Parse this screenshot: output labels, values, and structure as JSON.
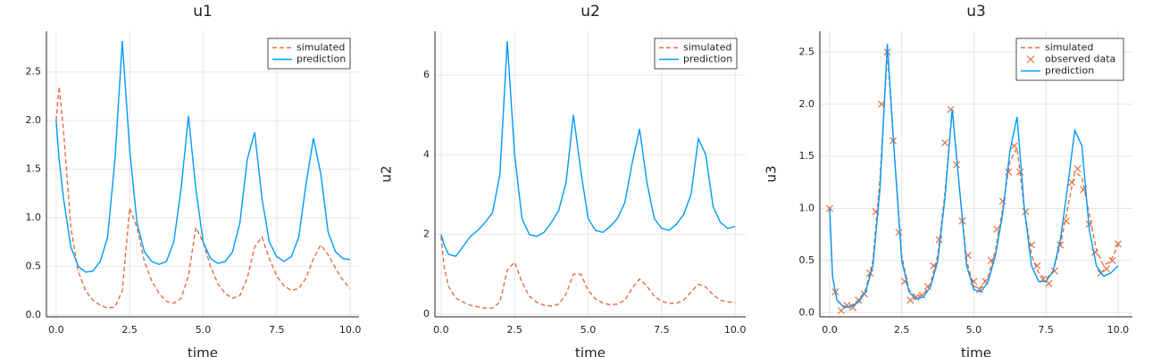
{
  "chart_data": [
    {
      "type": "line",
      "title": "u1",
      "xlabel": "time",
      "x": [
        0,
        0.1,
        0.25,
        0.5,
        0.75,
        1,
        1.25,
        1.5,
        1.75,
        2,
        2.25,
        2.5,
        2.75,
        3,
        3.25,
        3.5,
        3.75,
        4,
        4.25,
        4.5,
        4.75,
        5,
        5.25,
        5.5,
        5.75,
        6,
        6.25,
        6.5,
        6.75,
        7,
        7.25,
        7.5,
        7.75,
        8,
        8.25,
        8.5,
        8.75,
        9,
        9.25,
        9.5,
        9.75,
        10
      ],
      "series": [
        {
          "name": "simulated",
          "color": "#e26f46",
          "style": "dashed",
          "values": [
            2.0,
            2.35,
            1.9,
            0.9,
            0.45,
            0.25,
            0.15,
            0.1,
            0.07,
            0.08,
            0.25,
            1.1,
            0.9,
            0.55,
            0.35,
            0.22,
            0.14,
            0.12,
            0.17,
            0.4,
            0.9,
            0.75,
            0.5,
            0.32,
            0.22,
            0.17,
            0.2,
            0.38,
            0.7,
            0.8,
            0.58,
            0.4,
            0.3,
            0.25,
            0.27,
            0.38,
            0.58,
            0.72,
            0.62,
            0.48,
            0.36,
            0.27
          ]
        },
        {
          "name": "prediction",
          "color": "#009afa",
          "style": "solid",
          "values": [
            2.0,
            1.6,
            1.2,
            0.7,
            0.5,
            0.44,
            0.45,
            0.55,
            0.8,
            1.6,
            2.82,
            1.7,
            0.95,
            0.65,
            0.55,
            0.52,
            0.55,
            0.75,
            1.3,
            2.05,
            1.3,
            0.75,
            0.58,
            0.53,
            0.55,
            0.65,
            0.95,
            1.6,
            1.88,
            1.2,
            0.75,
            0.6,
            0.55,
            0.6,
            0.8,
            1.35,
            1.82,
            1.45,
            0.85,
            0.65,
            0.58,
            0.57
          ]
        }
      ],
      "xlim": [
        -0.33,
        10.3
      ],
      "ylim": [
        -0.02,
        2.92
      ],
      "xticks": [
        {
          "value": 0,
          "label": "0.0"
        },
        {
          "value": 2.5,
          "label": "2.5"
        },
        {
          "value": 5,
          "label": "5.0"
        },
        {
          "value": 7.5,
          "label": "7.5"
        },
        {
          "value": 10,
          "label": "10.0"
        }
      ],
      "yticks": [
        {
          "value": 0,
          "label": "0.0"
        },
        {
          "value": 0.5,
          "label": "0.5"
        },
        {
          "value": 1,
          "label": "1.0"
        },
        {
          "value": 1.5,
          "label": "1.5"
        },
        {
          "value": 2,
          "label": "2.0"
        },
        {
          "value": 2.5,
          "label": "2.5"
        }
      ],
      "grid": true,
      "legend": "top-right"
    },
    {
      "type": "line",
      "title": "u2",
      "xlabel": "time",
      "ylabel": "u2",
      "x": [
        0,
        0.1,
        0.25,
        0.5,
        0.75,
        1,
        1.25,
        1.5,
        1.75,
        2,
        2.25,
        2.5,
        2.75,
        3,
        3.25,
        3.5,
        3.75,
        4,
        4.25,
        4.5,
        4.75,
        5,
        5.25,
        5.5,
        5.75,
        6,
        6.25,
        6.5,
        6.75,
        7,
        7.25,
        7.5,
        7.75,
        8,
        8.25,
        8.5,
        8.75,
        9,
        9.25,
        9.5,
        9.75,
        10
      ],
      "series": [
        {
          "name": "simulated",
          "color": "#e26f46",
          "style": "dashed",
          "values": [
            1.95,
            1.2,
            0.7,
            0.4,
            0.3,
            0.22,
            0.18,
            0.15,
            0.15,
            0.3,
            1.1,
            1.3,
            0.8,
            0.45,
            0.3,
            0.22,
            0.2,
            0.25,
            0.5,
            1.0,
            1.0,
            0.6,
            0.38,
            0.28,
            0.23,
            0.25,
            0.35,
            0.65,
            0.88,
            0.7,
            0.45,
            0.32,
            0.27,
            0.27,
            0.35,
            0.55,
            0.75,
            0.68,
            0.48,
            0.35,
            0.3,
            0.3
          ]
        },
        {
          "name": "prediction",
          "color": "#009afa",
          "style": "solid",
          "values": [
            2.0,
            1.75,
            1.5,
            1.45,
            1.7,
            1.95,
            2.1,
            2.3,
            2.55,
            3.5,
            6.85,
            4.0,
            2.4,
            2.0,
            1.95,
            2.05,
            2.3,
            2.6,
            3.3,
            5.0,
            3.6,
            2.4,
            2.1,
            2.05,
            2.2,
            2.4,
            2.8,
            3.8,
            4.65,
            3.3,
            2.4,
            2.15,
            2.1,
            2.25,
            2.5,
            3.0,
            4.4,
            4.0,
            2.7,
            2.3,
            2.15,
            2.2
          ]
        }
      ],
      "xlim": [
        -0.21,
        10.36
      ],
      "ylim": [
        -0.07,
        7.1
      ],
      "xticks": [
        {
          "value": 0,
          "label": "0.0"
        },
        {
          "value": 2.5,
          "label": "2.5"
        },
        {
          "value": 5,
          "label": "5.0"
        },
        {
          "value": 7.5,
          "label": "7.5"
        },
        {
          "value": 10,
          "label": "10.0"
        }
      ],
      "yticks": [
        0,
        2,
        4,
        6
      ],
      "grid": true,
      "legend": "top-right"
    },
    {
      "type": "line",
      "title": "u3",
      "xlabel": "time",
      "ylabel": "u3",
      "x": [
        0,
        0.1,
        0.25,
        0.5,
        0.75,
        1,
        1.25,
        1.5,
        1.75,
        2,
        2.25,
        2.5,
        2.75,
        3,
        3.25,
        3.5,
        3.75,
        4,
        4.25,
        4.5,
        4.75,
        5,
        5.25,
        5.5,
        5.75,
        6,
        6.25,
        6.5,
        6.75,
        7,
        7.25,
        7.5,
        7.75,
        8,
        8.25,
        8.5,
        8.75,
        9,
        9.25,
        9.5,
        9.75,
        10
      ],
      "series": [
        {
          "name": "simulated",
          "color": "#e26f46",
          "style": "dashed",
          "values": [
            1.0,
            0.35,
            0.12,
            0.06,
            0.07,
            0.12,
            0.22,
            0.5,
            1.3,
            2.5,
            1.5,
            0.55,
            0.22,
            0.15,
            0.17,
            0.28,
            0.55,
            1.15,
            1.95,
            1.2,
            0.5,
            0.25,
            0.24,
            0.35,
            0.6,
            1.0,
            1.45,
            1.58,
            1.0,
            0.55,
            0.38,
            0.32,
            0.4,
            0.65,
            1.0,
            1.35,
            1.3,
            0.95,
            0.6,
            0.45,
            0.5,
            0.65
          ]
        },
        {
          "name": "observed data",
          "color": "#e26f46",
          "type": "scatter",
          "x": [
            0,
            0.2,
            0.4,
            0.6,
            0.8,
            1,
            1.2,
            1.4,
            1.6,
            1.8,
            2,
            2.2,
            2.4,
            2.6,
            2.8,
            3,
            3.2,
            3.4,
            3.6,
            3.8,
            4,
            4.2,
            4.4,
            4.6,
            4.8,
            5,
            5.2,
            5.4,
            5.6,
            5.8,
            6,
            6.2,
            6.4,
            6.6,
            6.8,
            7,
            7.2,
            7.4,
            7.6,
            7.8,
            8,
            8.2,
            8.4,
            8.6,
            8.8,
            9,
            9.2,
            9.4,
            9.6,
            9.8,
            10
          ],
          "values": [
            1.0,
            0.2,
            0.02,
            0.07,
            0.05,
            0.12,
            0.18,
            0.38,
            0.97,
            2.0,
            2.5,
            1.65,
            0.77,
            0.3,
            0.12,
            0.15,
            0.17,
            0.25,
            0.45,
            0.7,
            1.63,
            1.95,
            1.42,
            0.88,
            0.55,
            0.3,
            0.22,
            0.3,
            0.5,
            0.8,
            1.07,
            1.35,
            1.6,
            1.35,
            0.97,
            0.65,
            0.45,
            0.32,
            0.28,
            0.4,
            0.65,
            0.88,
            1.25,
            1.38,
            1.18,
            0.85,
            0.58,
            0.38,
            0.42,
            0.5,
            0.66
          ]
        },
        {
          "name": "prediction",
          "color": "#009afa",
          "style": "solid",
          "values": [
            1.0,
            0.35,
            0.12,
            0.05,
            0.06,
            0.1,
            0.2,
            0.45,
            1.2,
            2.58,
            1.5,
            0.5,
            0.2,
            0.13,
            0.15,
            0.25,
            0.5,
            1.1,
            1.95,
            1.2,
            0.45,
            0.22,
            0.2,
            0.3,
            0.55,
            0.95,
            1.55,
            1.88,
            1.0,
            0.45,
            0.3,
            0.3,
            0.4,
            0.7,
            1.2,
            1.75,
            1.6,
            0.8,
            0.45,
            0.35,
            0.38,
            0.45
          ]
        }
      ],
      "xlim": [
        -0.34,
        10.5
      ],
      "ylim": [
        -0.04,
        2.7
      ],
      "xticks": [
        {
          "value": 0,
          "label": "0.0"
        },
        {
          "value": 2.5,
          "label": "2.5"
        },
        {
          "value": 5,
          "label": "5.0"
        },
        {
          "value": 7.5,
          "label": "7.5"
        },
        {
          "value": 10,
          "label": "10.0"
        }
      ],
      "yticks": [
        {
          "value": 0,
          "label": "0.0"
        },
        {
          "value": 0.5,
          "label": "0.5"
        },
        {
          "value": 1,
          "label": "1.0"
        },
        {
          "value": 1.5,
          "label": "1.5"
        },
        {
          "value": 2,
          "label": "2.0"
        },
        {
          "value": 2.5,
          "label": "2.5"
        }
      ],
      "grid": true,
      "legend": "top-right"
    }
  ]
}
